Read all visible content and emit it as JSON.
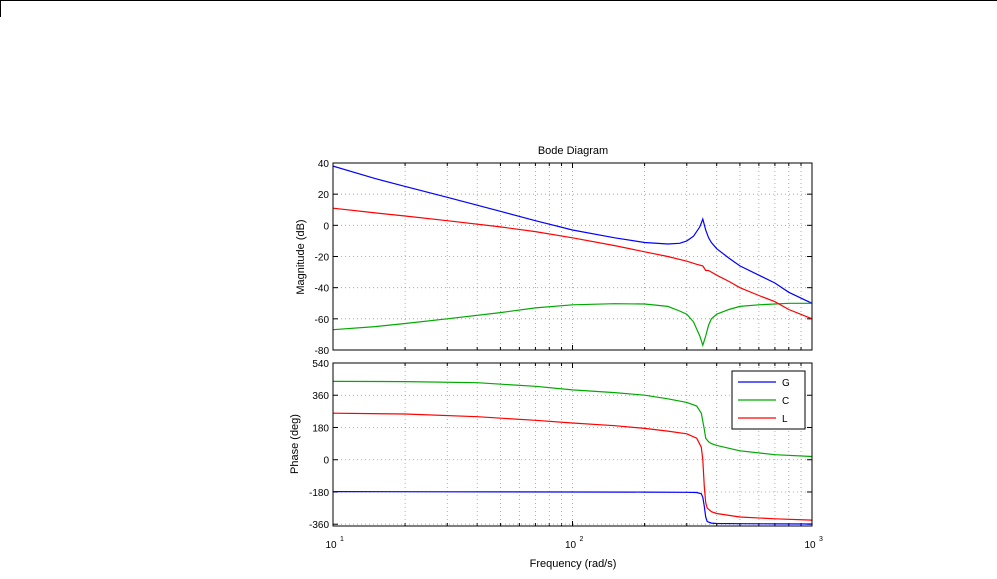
{
  "chart_data": {
    "type": "line",
    "title": "Bode Diagram",
    "xlabel": "Frequency  (rad/s)",
    "x_scale": "log",
    "xlim": [
      10,
      1000
    ],
    "x_ticks": [
      {
        "base": "10",
        "exp": "1"
      },
      {
        "base": "10",
        "exp": "2"
      },
      {
        "base": "10",
        "exp": "3"
      }
    ],
    "grid": true,
    "legend": {
      "position": "top-right",
      "entries": [
        "G",
        "C",
        "L"
      ]
    },
    "colors": {
      "G": "#0000ff",
      "C": "#00aa00",
      "L": "#ff0000"
    },
    "panels": [
      {
        "id": "magnitude",
        "ylabel": "Magnitude (dB)",
        "ylim": [
          -80,
          40
        ],
        "yticks": [
          "40",
          "20",
          "0",
          "-20",
          "-40",
          "-60",
          "-80"
        ],
        "series": [
          {
            "name": "G",
            "x": [
              10,
              15,
              20,
              30,
              50,
              70,
              100,
              150,
              200,
              250,
              280,
              300,
              320,
              340,
              350,
              360,
              370,
              380,
              400,
              450,
              500,
              600,
              700,
              800,
              1000
            ],
            "y": [
              38,
              30,
              25,
              18,
              9,
              3,
              -3,
              -8,
              -11,
              -12,
              -11.5,
              -10,
              -7,
              -1,
              4,
              -3,
              -8,
              -11,
              -15,
              -21,
              -26,
              -32,
              -37,
              -43,
              -50
            ]
          },
          {
            "name": "C",
            "x": [
              10,
              15,
              20,
              30,
              50,
              70,
              100,
              150,
              200,
              250,
              280,
              300,
              320,
              340,
              350,
              360,
              370,
              380,
              400,
              450,
              500,
              600,
              700,
              800,
              1000
            ],
            "y": [
              -67,
              -65,
              -63,
              -60,
              -56,
              -53,
              -51,
              -50.3,
              -50.5,
              -52,
              -55,
              -57,
              -62,
              -71,
              -77,
              -71,
              -64,
              -60,
              -57,
              -54,
              -52,
              -51,
              -50.5,
              -50,
              -50
            ]
          },
          {
            "name": "L",
            "x": [
              10,
              15,
              20,
              30,
              50,
              70,
              100,
              150,
              200,
              250,
              300,
              330,
              350,
              360,
              370,
              380,
              400,
              450,
              500,
              600,
              700,
              800,
              1000
            ],
            "y": [
              11,
              8,
              6,
              3,
              -1,
              -4,
              -8,
              -13,
              -17,
              -20,
              -23,
              -25,
              -26,
              -29,
              -29,
              -30,
              -32,
              -36,
              -40,
              -45,
              -49,
              -54,
              -60
            ]
          }
        ]
      },
      {
        "id": "phase",
        "ylabel": "Phase (deg)",
        "ylim": [
          -370,
          540
        ],
        "yticks": [
          "540",
          "360",
          "180",
          "0",
          "-180",
          "-360"
        ],
        "series": [
          {
            "name": "G",
            "x": [
              10,
              30,
              100,
              200,
              300,
              330,
              345,
              350,
              355,
              360,
              365,
              380,
              400,
              500,
              700,
              1000
            ],
            "y": [
              -178,
              -179,
              -180,
              -181,
              -182,
              -183,
              -190,
              -210,
              -260,
              -320,
              -345,
              -354,
              -356,
              -357,
              -358,
              -359
            ]
          },
          {
            "name": "C",
            "x": [
              10,
              20,
              40,
              70,
              100,
              150,
              200,
              250,
              300,
              330,
              345,
              355,
              360,
              370,
              380,
              400,
              500,
              700,
              1000
            ],
            "y": [
              437,
              436,
              430,
              410,
              390,
              375,
              360,
              340,
              320,
              300,
              260,
              170,
              120,
              100,
              90,
              80,
              50,
              28,
              18
            ]
          },
          {
            "name": "L",
            "x": [
              10,
              20,
              40,
              70,
              100,
              150,
              200,
              250,
              300,
              330,
              345,
              350,
              355,
              360,
              365,
              380,
              400,
              500,
              700,
              1000
            ],
            "y": [
              260,
              255,
              240,
              220,
              205,
              190,
              175,
              160,
              145,
              120,
              70,
              0,
              -150,
              -240,
              -270,
              -290,
              -300,
              -320,
              -330,
              -337
            ]
          }
        ]
      }
    ]
  }
}
